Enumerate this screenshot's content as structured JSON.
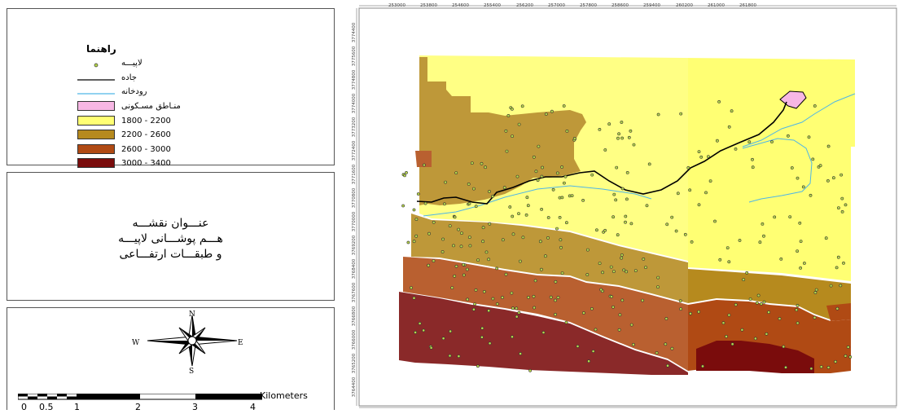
{
  "legend": {
    "heading": "راهنما",
    "items": [
      {
        "type": "point",
        "label": "لاپیـــه"
      },
      {
        "type": "line",
        "label": "جاده",
        "color": "#000000"
      },
      {
        "type": "line",
        "label": "رودخانه",
        "color": "#4fb6e6"
      },
      {
        "type": "fill",
        "label": "منـاطق مسـکونی",
        "color": "#f7b7e4"
      },
      {
        "type": "fill",
        "label": "1800 - 2200",
        "color": "#ffff73"
      },
      {
        "type": "fill",
        "label": "2200 - 2600",
        "color": "#b68a1e"
      },
      {
        "type": "fill",
        "label": "2600 - 3000",
        "color": "#b04a14"
      },
      {
        "type": "fill",
        "label": "3000 - 3400",
        "color": "#7a0c0c"
      }
    ]
  },
  "title": {
    "line1": "عنـــوان نقشـــه",
    "line2": "هـــم پوشـــانی لاپیـــه",
    "line3": "و طبقـــات ارتفـــاعی"
  },
  "compass": {
    "n": "N",
    "s": "S",
    "e": "E",
    "w": "W"
  },
  "scalebar": {
    "labels": [
      "0",
      "0.5",
      "1",
      "2",
      "3",
      "4"
    ],
    "unit": "Kilometers"
  },
  "grid": {
    "top_labels": [
      "253000",
      "253800",
      "254600",
      "255400",
      "256200",
      "257000",
      "257800",
      "258600",
      "259400",
      "260200",
      "261000",
      "261800"
    ],
    "left_labels": [
      "3774400",
      "3775600",
      "3774800",
      "3774000",
      "3773200",
      "3772400",
      "3771600",
      "3770800",
      "3770000",
      "3769200",
      "3768400",
      "3767600",
      "3766800",
      "3766000",
      "3765200",
      "3764400"
    ]
  }
}
